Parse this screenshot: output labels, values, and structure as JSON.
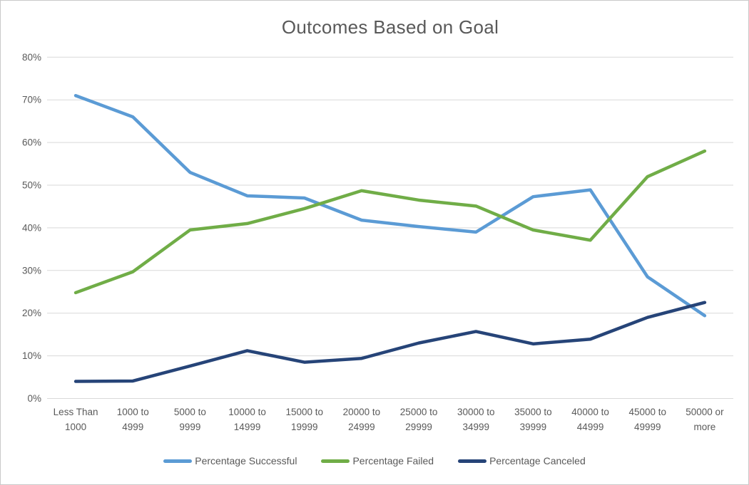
{
  "window": {
    "background": "#ffffff",
    "border_color": "#c9c9c9"
  },
  "chart_data": {
    "type": "line",
    "title": "Outcomes Based on Goal",
    "categories": [
      "Less Than 1000",
      "1000 to 4999",
      "5000 to 9999",
      "10000 to 14999",
      "15000 to 19999",
      "20000 to 24999",
      "25000 to 29999",
      "30000 to 34999",
      "35000 to 39999",
      "40000 to 44999",
      "45000 to 49999",
      "50000 or more"
    ],
    "series": [
      {
        "name": "Percentage Successful",
        "color": "#5B9BD5",
        "values": [
          71,
          66,
          53,
          47.5,
          47,
          41.8,
          40.3,
          39,
          47.3,
          48.9,
          28.5,
          19.4
        ]
      },
      {
        "name": "Percentage Failed",
        "color": "#70AD47",
        "values": [
          24.8,
          29.7,
          39.5,
          41,
          44.5,
          48.7,
          46.5,
          45.1,
          39.5,
          37.1,
          52,
          58
        ]
      },
      {
        "name": "Percentage Canceled",
        "color": "#264478",
        "values": [
          4,
          4.1,
          7.6,
          11.2,
          8.5,
          9.4,
          13,
          15.7,
          12.8,
          13.9,
          19,
          22.5
        ]
      }
    ],
    "xlabel": "",
    "ylabel": "",
    "ylim": [
      0,
      80
    ],
    "ytick_step": 10,
    "ytick_labels": [
      "0%",
      "10%",
      "20%",
      "30%",
      "40%",
      "50%",
      "60%",
      "70%",
      "80%"
    ],
    "grid": "horizontal",
    "gridline_color": "#D9D9D9",
    "text_color": "#595959",
    "legend_position": "bottom"
  }
}
